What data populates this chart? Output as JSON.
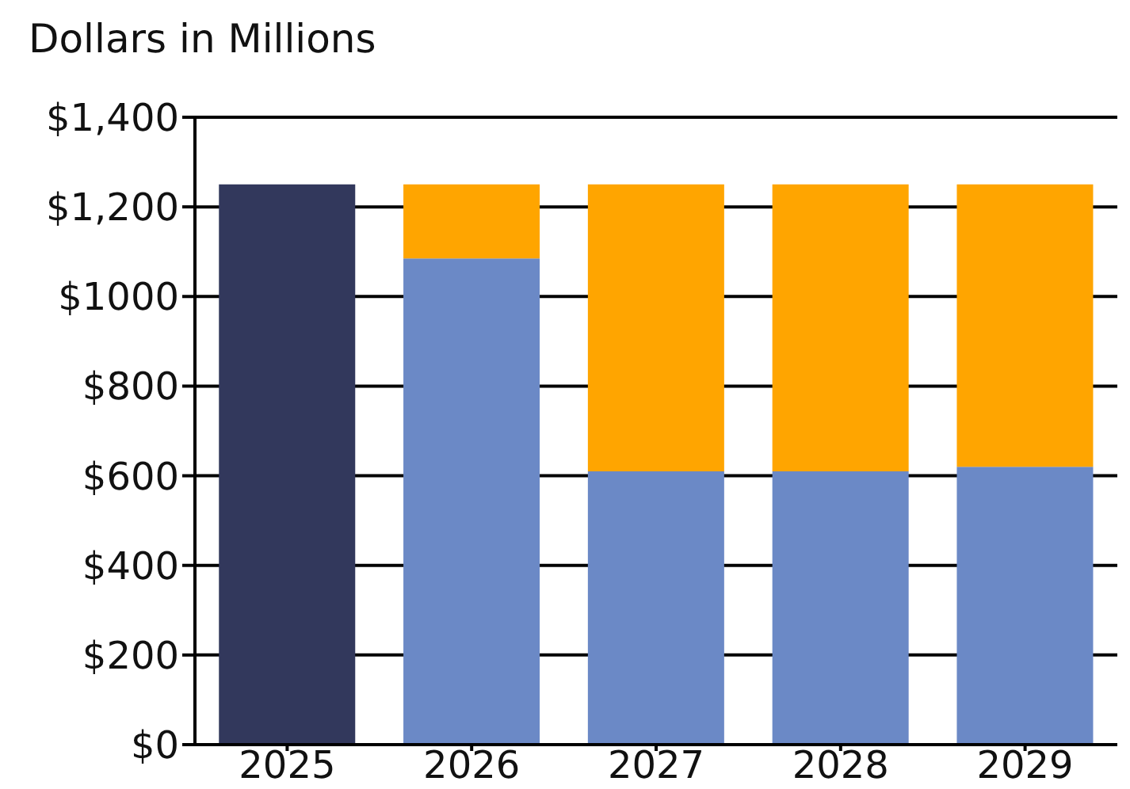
{
  "chart_data": {
    "type": "bar",
    "title": "Dollars in Millions",
    "categories": [
      "2025",
      "2026",
      "2027",
      "2028",
      "2029"
    ],
    "stacked": true,
    "series": [
      {
        "color": "#32385c",
        "values": [
          1250,
          null,
          null,
          null,
          null
        ]
      },
      {
        "color": "#6b89c6",
        "values": [
          null,
          1085,
          610,
          610,
          620
        ]
      },
      {
        "color": "#ffa500",
        "values": [
          null,
          165,
          640,
          640,
          630
        ]
      }
    ],
    "ylim": [
      0,
      1400
    ],
    "yticks": [
      {
        "value": 0,
        "label": "$0"
      },
      {
        "value": 200,
        "label": "$200"
      },
      {
        "value": 400,
        "label": "$400"
      },
      {
        "value": 600,
        "label": "$600"
      },
      {
        "value": 800,
        "label": "$800"
      },
      {
        "value": 1000,
        "label": "$1000"
      },
      {
        "value": 1200,
        "label": "$1,200"
      },
      {
        "value": 1400,
        "label": "$1,400"
      }
    ],
    "grid": "y"
  }
}
